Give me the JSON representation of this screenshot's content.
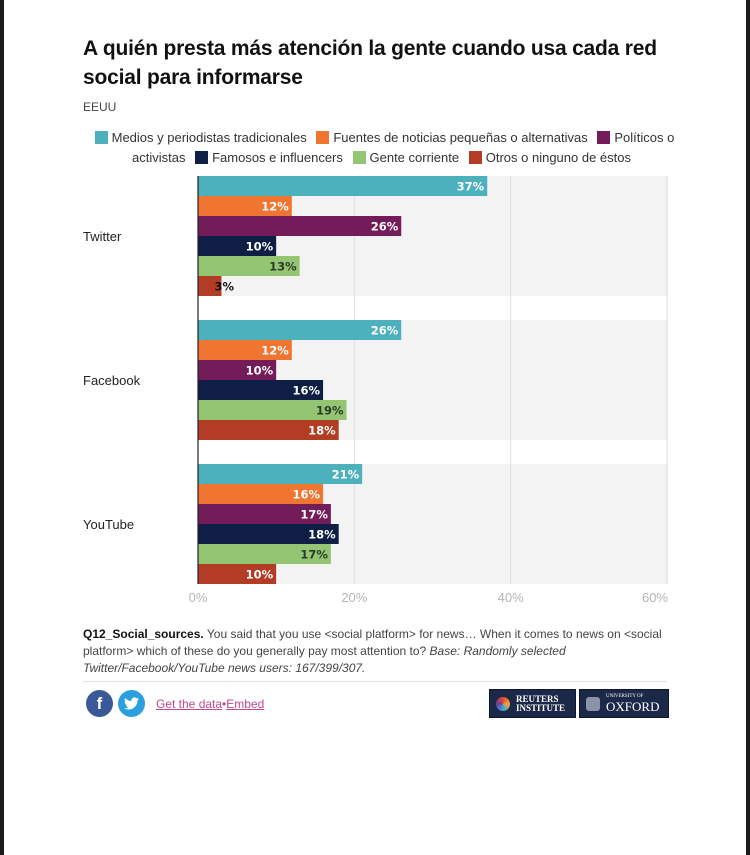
{
  "title": "A quién presta más atención la gente cuando usa cada red social para informarse",
  "subtitle": "EEUU",
  "legend": [
    {
      "label": "Medios y periodistas tradicionales",
      "color": "#4db0bd"
    },
    {
      "label": "Fuentes de noticias pequeñas o alternativas",
      "color": "#ef7530"
    },
    {
      "label": "Políticos o activistas",
      "color": "#741b59"
    },
    {
      "label": "Famosos e influencers",
      "color": "#0e1e45"
    },
    {
      "label": "Gente corriente",
      "color": "#93c572"
    },
    {
      "label": "Otros o ninguno de éstos",
      "color": "#b23d24"
    }
  ],
  "chart_data": {
    "type": "bar",
    "orientation": "horizontal",
    "title": "A quién presta más atención la gente cuando usa cada red social para informarse",
    "subtitle": "EEUU",
    "categories": [
      "Twitter",
      "Facebook",
      "YouTube"
    ],
    "series": [
      {
        "name": "Medios y periodistas tradicionales",
        "color": "#4db0bd",
        "label_color": "#ffffff",
        "values": [
          37,
          26,
          21
        ]
      },
      {
        "name": "Fuentes de noticias pequeñas o alternativas",
        "color": "#ef7530",
        "label_color": "#ffffff",
        "values": [
          12,
          12,
          16
        ]
      },
      {
        "name": "Políticos o activistas",
        "color": "#741b59",
        "label_color": "#ffffff",
        "values": [
          26,
          10,
          17
        ]
      },
      {
        "name": "Famosos e influencers",
        "color": "#0e1e45",
        "label_color": "#ffffff",
        "values": [
          10,
          16,
          18
        ]
      },
      {
        "name": "Gente corriente",
        "color": "#93c572",
        "label_color": "#2e3a2a",
        "values": [
          13,
          19,
          17
        ]
      },
      {
        "name": "Otros o ninguno de éstos",
        "color": "#b23d24",
        "label_color": "#ffffff",
        "values": [
          3,
          18,
          10
        ]
      }
    ],
    "value_suffix": "%",
    "xlabel": "",
    "ylabel": "",
    "xlim": [
      0,
      60
    ],
    "xticks": [
      0,
      20,
      40,
      60
    ],
    "xtick_labels": [
      "0%",
      "20%",
      "40%",
      "60%"
    ],
    "grid": true,
    "legend_position": "top"
  },
  "notes": {
    "question_id": "Q12_Social_sources.",
    "question_text": " You said that you use <social platform> for news… When it comes to news on <social platform> which of these do you generally pay most attention to? ",
    "base": "Base: Randomly selected Twitter/Facebook/YouTube news users: 167/399/307."
  },
  "footer": {
    "facebook_icon": "f",
    "twitter_icon": "🐦",
    "get_data_label": "Get the data",
    "separator": "•",
    "embed_label": "Embed",
    "reuters_line1": "REUTERS",
    "reuters_line2": "INSTITUTE",
    "oxford_line1": "UNIVERSITY OF",
    "oxford_line2": "OXFORD"
  }
}
